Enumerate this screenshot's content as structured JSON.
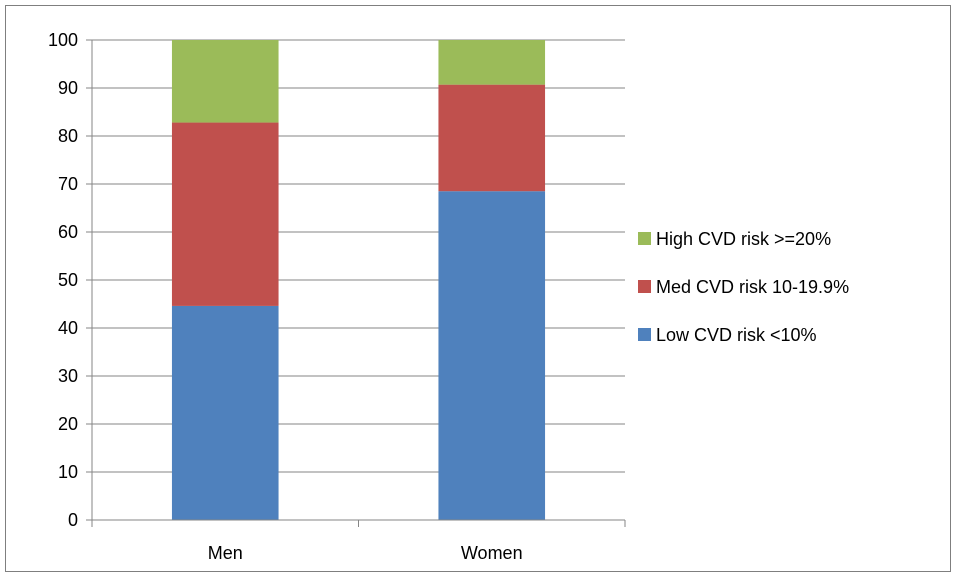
{
  "chart_data": {
    "type": "bar",
    "stacked": true,
    "categories": [
      "Men",
      "Women"
    ],
    "series": [
      {
        "name": "Low CVD risk <10%",
        "values": [
          44.6,
          68.5
        ],
        "color": "#4f81bd"
      },
      {
        "name": "Med CVD risk 10-19.9%",
        "values": [
          38.2,
          22.2
        ],
        "color": "#c0504d"
      },
      {
        "name": "High CVD risk >=20%",
        "values": [
          17.2,
          9.3
        ],
        "color": "#9bbb59"
      }
    ],
    "ylim": [
      0,
      100
    ],
    "yticks": [
      "0",
      "10",
      "20",
      "30",
      "40",
      "50",
      "60",
      "70",
      "80",
      "90",
      "100"
    ],
    "grid": true,
    "legend_position": "right",
    "legend_order": [
      "High CVD risk >=20%",
      "Med CVD risk 10-19.9%",
      "Low CVD risk <10%"
    ],
    "title": "",
    "xlabel": "",
    "ylabel": ""
  }
}
